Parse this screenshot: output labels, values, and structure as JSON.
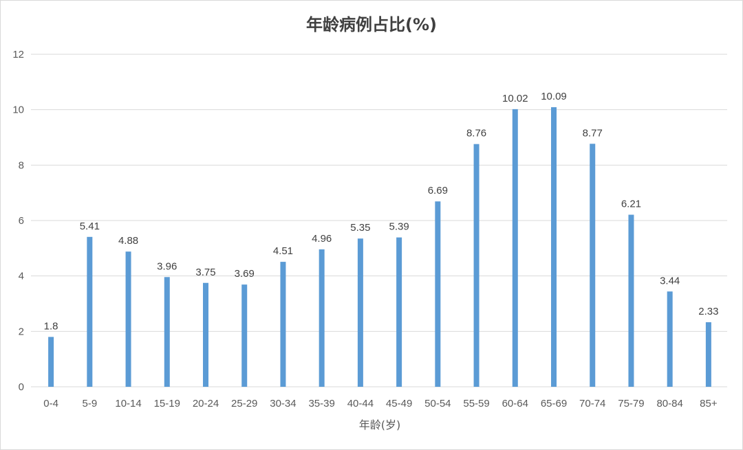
{
  "chart_data": {
    "type": "bar",
    "title": "年龄病例占比(%)",
    "xlabel": "年龄(岁)",
    "ylabel": "",
    "ylim": [
      0,
      12
    ],
    "yticks": [
      0,
      2,
      4,
      6,
      8,
      10,
      12
    ],
    "grid": true,
    "legend": "none",
    "categories": [
      "0-4",
      "5-9",
      "10-14",
      "15-19",
      "20-24",
      "25-29",
      "30-34",
      "35-39",
      "40-44",
      "45-49",
      "50-54",
      "55-59",
      "60-64",
      "65-69",
      "70-74",
      "75-79",
      "80-84",
      "85+"
    ],
    "values": [
      1.8,
      5.41,
      4.88,
      3.96,
      3.75,
      3.69,
      4.51,
      4.96,
      5.35,
      5.39,
      6.69,
      8.76,
      10.02,
      10.09,
      8.77,
      6.21,
      3.44,
      2.33
    ],
    "value_labels": [
      "1.8",
      "5.41",
      "4.88",
      "3.96",
      "3.75",
      "3.69",
      "4.51",
      "4.96",
      "5.35",
      "5.39",
      "6.69",
      "8.76",
      "10.02",
      "10.09",
      "8.77",
      "6.21",
      "3.44",
      "2.33"
    ],
    "colors": {
      "bar": "#5b9bd5"
    }
  }
}
